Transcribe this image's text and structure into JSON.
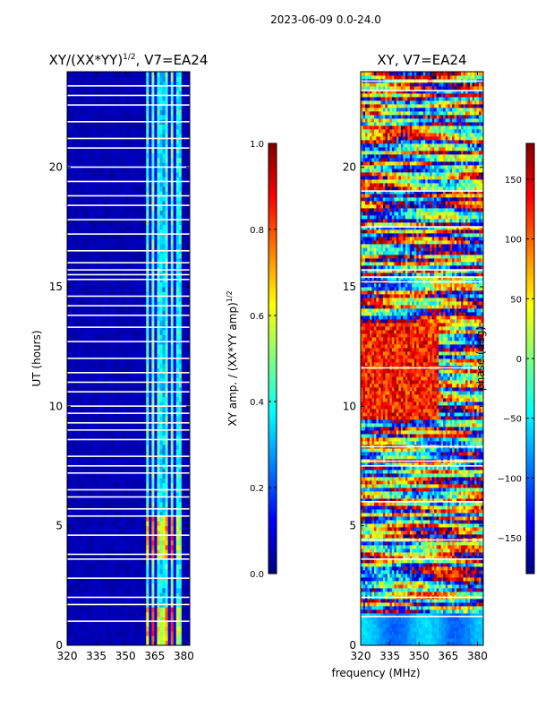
{
  "figure": {
    "suptitle": "2023-06-09 0.0-24.0",
    "shared_xlabel": "frequency (MHz)"
  },
  "colors": {
    "jet_stops": [
      "#00007f",
      "#0000ff",
      "#007fff",
      "#00ffff",
      "#7fff7f",
      "#ffff00",
      "#ff7f00",
      "#ff0000",
      "#7f0000"
    ],
    "gap": "#ffffff",
    "frame": "#000000"
  },
  "chart_data": [
    {
      "type": "heatmap",
      "title_prefix": "XY/(XX*YY)",
      "title_sup": "1/2",
      "title_suffix": ", V7=EA24",
      "xlabel": "",
      "ylabel": "UT (hours)",
      "xlim": [
        320,
        383
      ],
      "ylim": [
        0,
        24
      ],
      "xticks": [
        320,
        335,
        350,
        365,
        380
      ],
      "yticks": [
        0,
        5,
        10,
        15,
        20
      ],
      "colorbar": {
        "label_prefix": "XY amp. / (XX*YY amp)",
        "label_sup": "1/2",
        "range": [
          0.0,
          1.0
        ],
        "ticks": [
          "0.0",
          "0.2",
          "0.4",
          "0.6",
          "0.8",
          "1.0"
        ]
      },
      "description_values": {
        "low_band_value": 0.05,
        "high_band_start_mhz": 360,
        "high_band_end_mhz": 379,
        "high_band_typical": 0.35,
        "hot_hours": [
          [
            0,
            1.6
          ],
          [
            3.6,
            5.3
          ]
        ],
        "hot_value": 0.8
      },
      "gaps_ut_hours": [
        1.0,
        1.7,
        2.0,
        2.8,
        3.6,
        3.8,
        4.6,
        5.4,
        5.7,
        6.2,
        6.5,
        7.2,
        7.5,
        7.9,
        8.6,
        9.0,
        9.3,
        9.7,
        10.0,
        10.6,
        11.0,
        11.4,
        12.0,
        12.7,
        13.3,
        13.8,
        14.2,
        14.6,
        15.3,
        15.5,
        15.7,
        16.0,
        16.5,
        17.2,
        17.8,
        18.4,
        18.8,
        19.4,
        20.0,
        20.8,
        21.2,
        21.9,
        22.6,
        23.0,
        23.4
      ]
    },
    {
      "type": "heatmap",
      "title_prefix": "XY, V7=EA24",
      "title_sup": "",
      "title_suffix": "",
      "xlabel": "frequency (MHz)",
      "ylabel": "",
      "xlim": [
        320,
        383
      ],
      "ylim": [
        0,
        24
      ],
      "xticks": [
        320,
        335,
        350,
        365,
        380
      ],
      "yticks": [
        0,
        5,
        10,
        15,
        20
      ],
      "colorbar": {
        "label_prefix": "phase (deg)",
        "label_sup": "",
        "range": [
          -180,
          180
        ],
        "ticks": [
          "−150",
          "−100",
          "−50",
          "0",
          "50",
          "100",
          "150"
        ],
        "tick_values": [
          -150,
          -100,
          -50,
          0,
          50,
          100,
          150
        ]
      },
      "description_values": {
        "phase_range_deg": [
          -180,
          180
        ],
        "smooth_band_hours": [
          0,
          1.3
        ],
        "red_region_hours": [
          9.5,
          13.5
        ]
      },
      "gaps_ut_hours": [
        1.2,
        2.0,
        3.6,
        4.4,
        6.0,
        7.5,
        7.7,
        8.3,
        11.6,
        15.2,
        15.4,
        15.7,
        17.5,
        19.0,
        23.2,
        23.6
      ]
    }
  ]
}
